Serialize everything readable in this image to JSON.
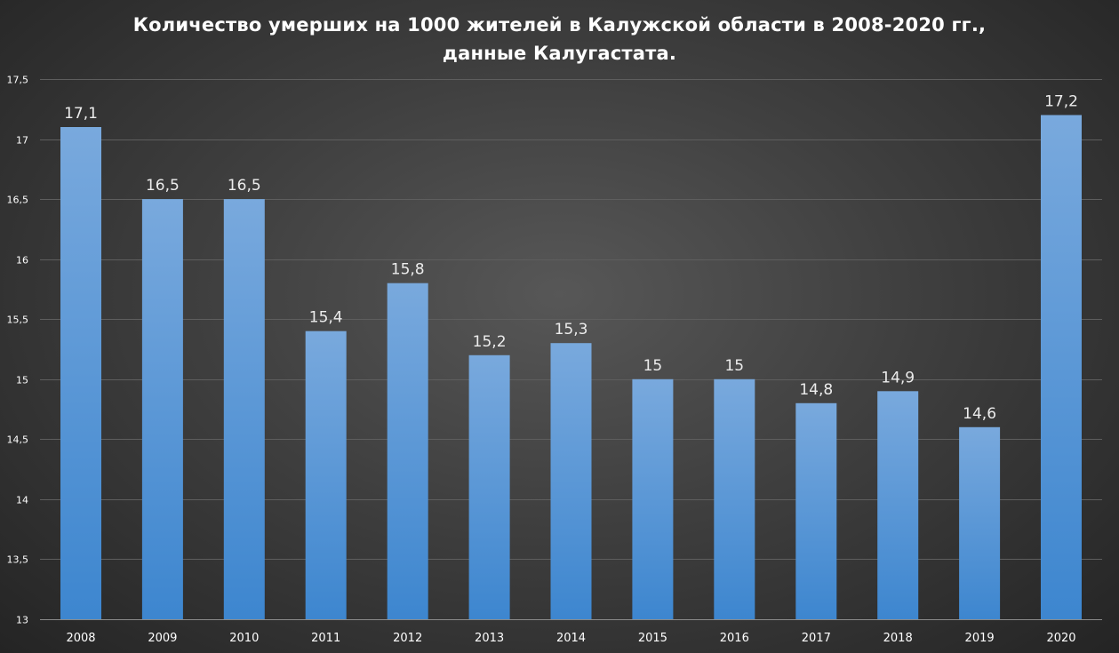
{
  "title_line1": "Количество  умерших  на 1000 жителей  в Калужской  области  в 2008-2020 гг.,",
  "title_line2": "данные  Калугастата.",
  "colors": {
    "bar_top": "#79a9dd",
    "bar_bottom": "#3d86cf",
    "background": "#3f3f3f"
  },
  "chart_data": {
    "type": "bar",
    "title": "Количество  умерших  на 1000 жителей  в Калужской  области  в 2008-2020 гг., данные  Калугастата.",
    "xlabel": "",
    "ylabel": "",
    "categories": [
      "2008",
      "2009",
      "2010",
      "2011",
      "2012",
      "2013",
      "2014",
      "2015",
      "2016",
      "2017",
      "2018",
      "2019",
      "2020"
    ],
    "values": [
      17.1,
      16.5,
      16.5,
      15.4,
      15.8,
      15.2,
      15.3,
      15,
      15,
      14.8,
      14.9,
      14.6,
      17.2
    ],
    "data_labels": [
      "17,1",
      "16,5",
      "16,5",
      "15,4",
      "15,8",
      "15,2",
      "15,3",
      "15",
      "15",
      "14,8",
      "14,9",
      "14,6",
      "17,2"
    ],
    "ylim": [
      13,
      17.5
    ],
    "yticks": [
      13,
      13.5,
      14,
      14.5,
      15,
      15.5,
      16,
      16.5,
      17,
      17.5
    ],
    "ytick_labels": [
      "13",
      "13,5",
      "14",
      "14,5",
      "15",
      "15,5",
      "16",
      "16,5",
      "17",
      "17,5"
    ],
    "grid": true,
    "legend": "none"
  }
}
